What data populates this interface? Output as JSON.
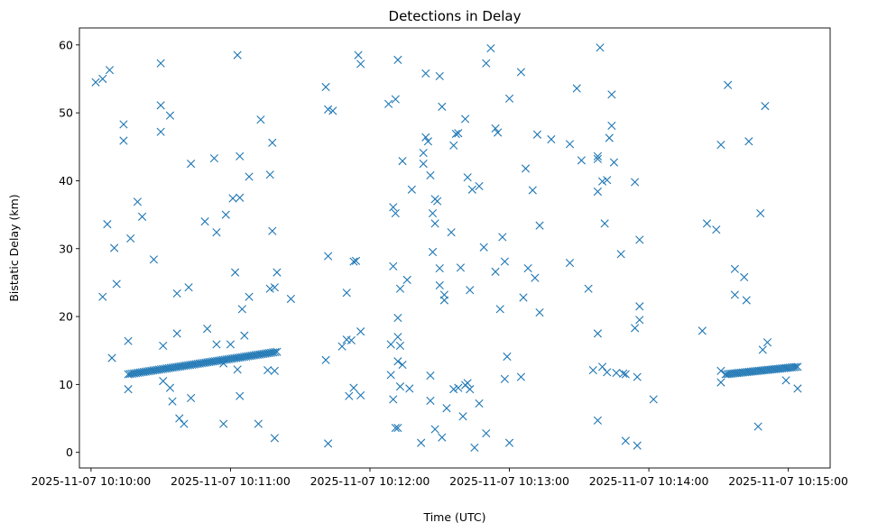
{
  "chart_data": {
    "type": "scatter",
    "title": "Detections in Delay",
    "xlabel": "Time (UTC)",
    "ylabel": "Bistatic Delay (km)",
    "marker": "x",
    "color": "#1f77b4",
    "grid": false,
    "legend": "none",
    "x_axis": {
      "type": "datetime",
      "range": [
        "2025-11-07 10:09:55",
        "2025-11-07 10:15:18"
      ],
      "ticks": [
        "2025-11-07 10:10:00",
        "2025-11-07 10:11:00",
        "2025-11-07 10:12:00",
        "2025-11-07 10:13:00",
        "2025-11-07 10:14:00",
        "2025-11-07 10:15:00"
      ]
    },
    "y_axis": {
      "range": [
        -2.3,
        62.5
      ],
      "ticks": [
        0,
        10,
        20,
        30,
        40,
        50,
        60
      ]
    },
    "tracks": [
      {
        "from": {
          "x": "2025-11-07 10:10:16",
          "y": 11.5
        },
        "to": {
          "x": "2025-11-07 10:11:20",
          "y": 14.8
        }
      },
      {
        "from": {
          "x": "2025-11-07 10:14:33",
          "y": 11.5
        },
        "to": {
          "x": "2025-11-07 10:15:04",
          "y": 12.6
        }
      }
    ],
    "points": [
      [
        "2025-11-07 10:10:02",
        54.5
      ],
      [
        "2025-11-07 10:10:05",
        55.0
      ],
      [
        "2025-11-07 10:10:08",
        56.3
      ],
      [
        "2025-11-07 10:10:14",
        48.3
      ],
      [
        "2025-11-07 10:10:14",
        45.9
      ],
      [
        "2025-11-07 10:10:30",
        57.3
      ],
      [
        "2025-11-07 10:10:30",
        51.1
      ],
      [
        "2025-11-07 10:10:34",
        49.6
      ],
      [
        "2025-11-07 10:10:30",
        47.2
      ],
      [
        "2025-11-07 10:10:43",
        42.5
      ],
      [
        "2025-11-07 10:10:53",
        43.3
      ],
      [
        "2025-11-07 10:11:03",
        58.5
      ],
      [
        "2025-11-07 10:11:13",
        49.0
      ],
      [
        "2025-11-07 10:11:18",
        45.6
      ],
      [
        "2025-11-07 10:11:04",
        43.6
      ],
      [
        "2025-11-07 10:11:08",
        40.6
      ],
      [
        "2025-11-07 10:11:17",
        40.9
      ],
      [
        "2025-11-07 10:10:20",
        36.9
      ],
      [
        "2025-11-07 10:10:22",
        34.7
      ],
      [
        "2025-11-07 10:10:07",
        33.6
      ],
      [
        "2025-11-07 10:10:10",
        30.1
      ],
      [
        "2025-11-07 10:10:17",
        31.5
      ],
      [
        "2025-11-07 10:10:27",
        28.4
      ],
      [
        "2025-11-07 10:10:49",
        34.0
      ],
      [
        "2025-11-07 10:10:54",
        32.4
      ],
      [
        "2025-11-07 10:10:58",
        35.0
      ],
      [
        "2025-11-07 10:11:01",
        37.4
      ],
      [
        "2025-11-07 10:11:04",
        37.5
      ],
      [
        "2025-11-07 10:11:18",
        32.6
      ],
      [
        "2025-11-07 10:10:05",
        22.9
      ],
      [
        "2025-11-07 10:10:11",
        24.8
      ],
      [
        "2025-11-07 10:10:37",
        23.4
      ],
      [
        "2025-11-07 10:10:42",
        24.3
      ],
      [
        "2025-11-07 10:11:02",
        26.5
      ],
      [
        "2025-11-07 10:11:05",
        21.1
      ],
      [
        "2025-11-07 10:11:08",
        22.9
      ],
      [
        "2025-11-07 10:11:19",
        24.3
      ],
      [
        "2025-11-07 10:11:17",
        24.1
      ],
      [
        "2025-11-07 10:11:20",
        26.5
      ],
      [
        "2025-11-07 10:11:26",
        22.6
      ],
      [
        "2025-11-07 10:10:09",
        13.9
      ],
      [
        "2025-11-07 10:10:16",
        16.4
      ],
      [
        "2025-11-07 10:10:31",
        15.7
      ],
      [
        "2025-11-07 10:10:37",
        17.5
      ],
      [
        "2025-11-07 10:10:50",
        18.2
      ],
      [
        "2025-11-07 10:10:54",
        15.9
      ],
      [
        "2025-11-07 10:11:06",
        17.2
      ],
      [
        "2025-11-07 10:11:00",
        15.9
      ],
      [
        "2025-11-07 10:10:16",
        9.3
      ],
      [
        "2025-11-07 10:10:31",
        10.5
      ],
      [
        "2025-11-07 10:10:34",
        9.5
      ],
      [
        "2025-11-07 10:10:35",
        7.5
      ],
      [
        "2025-11-07 10:10:38",
        5.0
      ],
      [
        "2025-11-07 10:10:40",
        4.2
      ],
      [
        "2025-11-07 10:10:43",
        8.0
      ],
      [
        "2025-11-07 10:10:57",
        4.2
      ],
      [
        "2025-11-07 10:11:04",
        8.3
      ],
      [
        "2025-11-07 10:11:12",
        4.2
      ],
      [
        "2025-11-07 10:11:19",
        12.0
      ],
      [
        "2025-11-07 10:11:19",
        2.1
      ],
      [
        "2025-11-07 10:11:16",
        12.1
      ],
      [
        "2025-11-07 10:11:03",
        12.2
      ],
      [
        "2025-11-07 10:10:57",
        13.1
      ],
      [
        "2025-11-07 10:11:41",
        53.8
      ],
      [
        "2025-11-07 10:11:42",
        50.5
      ],
      [
        "2025-11-07 10:11:44",
        50.3
      ],
      [
        "2025-11-07 10:11:55",
        58.5
      ],
      [
        "2025-11-07 10:11:56",
        57.2
      ],
      [
        "2025-11-07 10:12:08",
        51.3
      ],
      [
        "2025-11-07 10:12:11",
        52.0
      ],
      [
        "2025-11-07 10:12:12",
        57.8
      ],
      [
        "2025-11-07 10:12:14",
        42.9
      ],
      [
        "2025-11-07 10:12:24",
        55.8
      ],
      [
        "2025-11-07 10:12:27",
        35.2
      ],
      [
        "2025-11-07 10:12:30",
        55.4
      ],
      [
        "2025-11-07 10:12:31",
        50.9
      ],
      [
        "2025-11-07 10:12:27",
        29.5
      ],
      [
        "2025-11-07 10:12:24",
        46.4
      ],
      [
        "2025-11-07 10:12:26",
        40.8
      ],
      [
        "2025-11-07 10:12:23",
        42.5
      ],
      [
        "2025-11-07 10:12:23",
        44.1
      ],
      [
        "2025-11-07 10:12:25",
        45.8
      ],
      [
        "2025-11-07 10:12:18",
        38.7
      ],
      [
        "2025-11-07 10:12:28",
        37.3
      ],
      [
        "2025-11-07 10:12:29",
        37.0
      ],
      [
        "2025-11-07 10:12:28",
        33.7
      ],
      [
        "2025-11-07 10:12:10",
        36.1
      ],
      [
        "2025-11-07 10:12:11",
        35.2
      ],
      [
        "2025-11-07 10:11:42",
        28.9
      ],
      [
        "2025-11-07 10:11:53",
        28.1
      ],
      [
        "2025-11-07 10:11:54",
        28.2
      ],
      [
        "2025-11-07 10:11:50",
        23.5
      ],
      [
        "2025-11-07 10:12:10",
        27.4
      ],
      [
        "2025-11-07 10:12:13",
        24.1
      ],
      [
        "2025-11-07 10:12:16",
        25.4
      ],
      [
        "2025-11-07 10:12:30",
        24.6
      ],
      [
        "2025-11-07 10:12:30",
        27.1
      ],
      [
        "2025-11-07 10:12:32",
        22.4
      ],
      [
        "2025-11-07 10:12:32",
        23.2
      ],
      [
        "2025-11-07 10:12:39",
        27.2
      ],
      [
        "2025-11-07 10:12:35",
        32.4
      ],
      [
        "2025-11-07 10:11:41",
        13.6
      ],
      [
        "2025-11-07 10:11:48",
        15.6
      ],
      [
        "2025-11-07 10:11:50",
        16.6
      ],
      [
        "2025-11-07 10:11:52",
        16.5
      ],
      [
        "2025-11-07 10:11:56",
        17.8
      ],
      [
        "2025-11-07 10:11:51",
        8.3
      ],
      [
        "2025-11-07 10:11:53",
        9.5
      ],
      [
        "2025-11-07 10:11:56",
        8.4
      ],
      [
        "2025-11-07 10:12:09",
        15.9
      ],
      [
        "2025-11-07 10:12:09",
        11.4
      ],
      [
        "2025-11-07 10:12:10",
        7.8
      ],
      [
        "2025-11-07 10:12:12",
        17.0
      ],
      [
        "2025-11-07 10:12:12",
        13.4
      ],
      [
        "2025-11-07 10:12:13",
        15.7
      ],
      [
        "2025-11-07 10:12:14",
        12.9
      ],
      [
        "2025-11-07 10:12:13",
        9.7
      ],
      [
        "2025-11-07 10:12:12",
        19.8
      ],
      [
        "2025-11-07 10:12:11",
        3.6
      ],
      [
        "2025-11-07 10:12:12",
        3.6
      ],
      [
        "2025-11-07 10:12:17",
        9.4
      ],
      [
        "2025-11-07 10:12:22",
        1.4
      ],
      [
        "2025-11-07 10:12:26",
        7.6
      ],
      [
        "2025-11-07 10:12:26",
        11.3
      ],
      [
        "2025-11-07 10:11:42",
        1.3
      ],
      [
        "2025-11-07 10:12:33",
        6.5
      ],
      [
        "2025-11-07 10:12:36",
        9.3
      ],
      [
        "2025-11-07 10:12:31",
        2.2
      ],
      [
        "2025-11-07 10:12:28",
        3.4
      ],
      [
        "2025-11-07 10:12:37",
        46.9
      ],
      [
        "2025-11-07 10:12:38",
        47.0
      ],
      [
        "2025-11-07 10:12:36",
        45.2
      ],
      [
        "2025-11-07 10:12:41",
        49.1
      ],
      [
        "2025-11-07 10:12:42",
        40.5
      ],
      [
        "2025-11-07 10:12:44",
        38.7
      ],
      [
        "2025-11-07 10:12:47",
        39.2
      ],
      [
        "2025-11-07 10:12:50",
        57.3
      ],
      [
        "2025-11-07 10:12:52",
        59.5
      ],
      [
        "2025-11-07 10:12:54",
        47.7
      ],
      [
        "2025-11-07 10:12:55",
        47.1
      ],
      [
        "2025-11-07 10:13:00",
        52.1
      ],
      [
        "2025-11-07 10:13:05",
        56.0
      ],
      [
        "2025-11-07 10:13:07",
        41.8
      ],
      [
        "2025-11-07 10:13:12",
        46.8
      ],
      [
        "2025-11-07 10:13:18",
        46.1
      ],
      [
        "2025-11-07 10:13:26",
        45.4
      ],
      [
        "2025-11-07 10:13:29",
        53.6
      ],
      [
        "2025-11-07 10:13:31",
        43.0
      ],
      [
        "2025-11-07 10:13:38",
        43.2
      ],
      [
        "2025-11-07 10:13:38",
        43.6
      ],
      [
        "2025-11-07 10:13:39",
        59.6
      ],
      [
        "2025-11-07 10:13:43",
        46.3
      ],
      [
        "2025-11-07 10:13:44",
        48.1
      ],
      [
        "2025-11-07 10:13:45",
        42.7
      ],
      [
        "2025-11-07 10:13:44",
        52.7
      ],
      [
        "2025-11-07 10:13:40",
        39.9
      ],
      [
        "2025-11-07 10:13:42",
        40.1
      ],
      [
        "2025-11-07 10:13:38",
        38.4
      ],
      [
        "2025-11-07 10:13:54",
        39.8
      ],
      [
        "2025-11-07 10:12:49",
        30.2
      ],
      [
        "2025-11-07 10:12:54",
        26.6
      ],
      [
        "2025-11-07 10:12:57",
        31.7
      ],
      [
        "2025-11-07 10:12:58",
        28.1
      ],
      [
        "2025-11-07 10:12:56",
        21.1
      ],
      [
        "2025-11-07 10:13:06",
        22.8
      ],
      [
        "2025-11-07 10:13:08",
        27.1
      ],
      [
        "2025-11-07 10:13:10",
        38.6
      ],
      [
        "2025-11-07 10:13:11",
        25.7
      ],
      [
        "2025-11-07 10:13:13",
        33.4
      ],
      [
        "2025-11-07 10:13:13",
        20.6
      ],
      [
        "2025-11-07 10:13:26",
        27.9
      ],
      [
        "2025-11-07 10:13:34",
        24.1
      ],
      [
        "2025-11-07 10:13:41",
        33.7
      ],
      [
        "2025-11-07 10:13:48",
        29.2
      ],
      [
        "2025-11-07 10:13:56",
        31.3
      ],
      [
        "2025-11-07 10:13:56",
        21.5
      ],
      [
        "2025-11-07 10:13:56",
        19.5
      ],
      [
        "2025-11-07 10:13:54",
        18.3
      ],
      [
        "2025-11-07 10:12:38",
        9.5
      ],
      [
        "2025-11-07 10:12:40",
        5.3
      ],
      [
        "2025-11-07 10:12:41",
        9.9
      ],
      [
        "2025-11-07 10:12:42",
        10.2
      ],
      [
        "2025-11-07 10:12:43",
        9.3
      ],
      [
        "2025-11-07 10:12:45",
        0.7
      ],
      [
        "2025-11-07 10:12:47",
        7.2
      ],
      [
        "2025-11-07 10:12:50",
        2.8
      ],
      [
        "2025-11-07 10:12:43",
        23.9
      ],
      [
        "2025-11-07 10:12:58",
        10.8
      ],
      [
        "2025-11-07 10:12:59",
        14.1
      ],
      [
        "2025-11-07 10:13:00",
        1.4
      ],
      [
        "2025-11-07 10:13:05",
        11.1
      ],
      [
        "2025-11-07 10:13:36",
        12.1
      ],
      [
        "2025-11-07 10:13:38",
        17.5
      ],
      [
        "2025-11-07 10:13:38",
        4.7
      ],
      [
        "2025-11-07 10:13:40",
        12.6
      ],
      [
        "2025-11-07 10:13:42",
        11.8
      ],
      [
        "2025-11-07 10:13:46",
        11.7
      ],
      [
        "2025-11-07 10:13:49",
        11.6
      ],
      [
        "2025-11-07 10:13:50",
        11.5
      ],
      [
        "2025-11-07 10:13:50",
        1.7
      ],
      [
        "2025-11-07 10:13:55",
        11.1
      ],
      [
        "2025-11-07 10:13:55",
        1.0
      ],
      [
        "2025-11-07 10:14:02",
        7.8
      ],
      [
        "2025-11-07 10:14:25",
        33.7
      ],
      [
        "2025-11-07 10:14:29",
        32.8
      ],
      [
        "2025-11-07 10:14:34",
        54.1
      ],
      [
        "2025-11-07 10:14:31",
        45.3
      ],
      [
        "2025-11-07 10:14:43",
        45.8
      ],
      [
        "2025-11-07 10:14:48",
        35.2
      ],
      [
        "2025-11-07 10:14:50",
        51.0
      ],
      [
        "2025-11-07 10:14:37",
        27.0
      ],
      [
        "2025-11-07 10:14:41",
        25.8
      ],
      [
        "2025-11-07 10:14:37",
        23.2
      ],
      [
        "2025-11-07 10:14:42",
        22.4
      ],
      [
        "2025-11-07 10:14:23",
        17.9
      ],
      [
        "2025-11-07 10:14:31",
        12.0
      ],
      [
        "2025-11-07 10:14:31",
        10.3
      ],
      [
        "2025-11-07 10:14:49",
        15.1
      ],
      [
        "2025-11-07 10:14:51",
        16.2
      ],
      [
        "2025-11-07 10:14:47",
        3.8
      ],
      [
        "2025-11-07 10:14:59",
        10.6
      ],
      [
        "2025-11-07 10:15:04",
        9.4
      ]
    ]
  }
}
